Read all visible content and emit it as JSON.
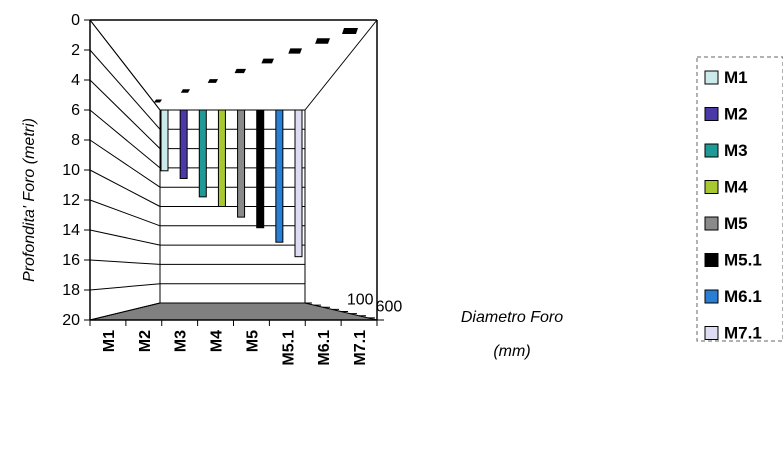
{
  "chart_data": {
    "type": "bar",
    "subtype": "3d-column-inverted",
    "categories": [
      "M1",
      "M2",
      "M3",
      "M4",
      "M5",
      "M5.1",
      "M6.1",
      "M7.1"
    ],
    "series": [
      {
        "name": "M1",
        "color": "#cdeaea",
        "depth": 6.3
      },
      {
        "name": "M2",
        "color": "#4a3aa6",
        "depth": 7.1
      },
      {
        "name": "M3",
        "color": "#1f9a96",
        "depth": 9.0
      },
      {
        "name": "M4",
        "color": "#a8c832",
        "depth": 10.0
      },
      {
        "name": "M5",
        "color": "#8a8a8a",
        "depth": 11.1
      },
      {
        "name": "M5.1",
        "color": "#000000",
        "depth": 12.2
      },
      {
        "name": "M6.1",
        "color": "#2a7fd4",
        "depth": 13.7
      },
      {
        "name": "M7.1",
        "color": "#dcdcf2",
        "depth": 15.2
      }
    ],
    "diameter_markers": [
      {
        "category": "M1",
        "value": 100
      },
      {
        "category": "M2",
        "value": 100
      },
      {
        "category": "M3",
        "value": 100
      },
      {
        "category": "M4",
        "value": 100
      },
      {
        "category": "M5",
        "value": 100
      },
      {
        "category": "M5.1",
        "value": 100
      },
      {
        "category": "M6.1",
        "value": 100
      },
      {
        "category": "M7.1",
        "value": 100
      }
    ],
    "ylabel": "Profondita' Foro (metri)",
    "zlabel_line1": "Diametro Foro",
    "zlabel_line2": "(mm)",
    "ylim": [
      0,
      20
    ],
    "yticks": [
      0,
      2,
      4,
      6,
      8,
      10,
      12,
      14,
      16,
      18,
      20
    ],
    "y_inverted": true,
    "zticks": [
      "100",
      "600"
    ],
    "grid": true,
    "legend_position": "right",
    "floor_color": "#808080"
  }
}
